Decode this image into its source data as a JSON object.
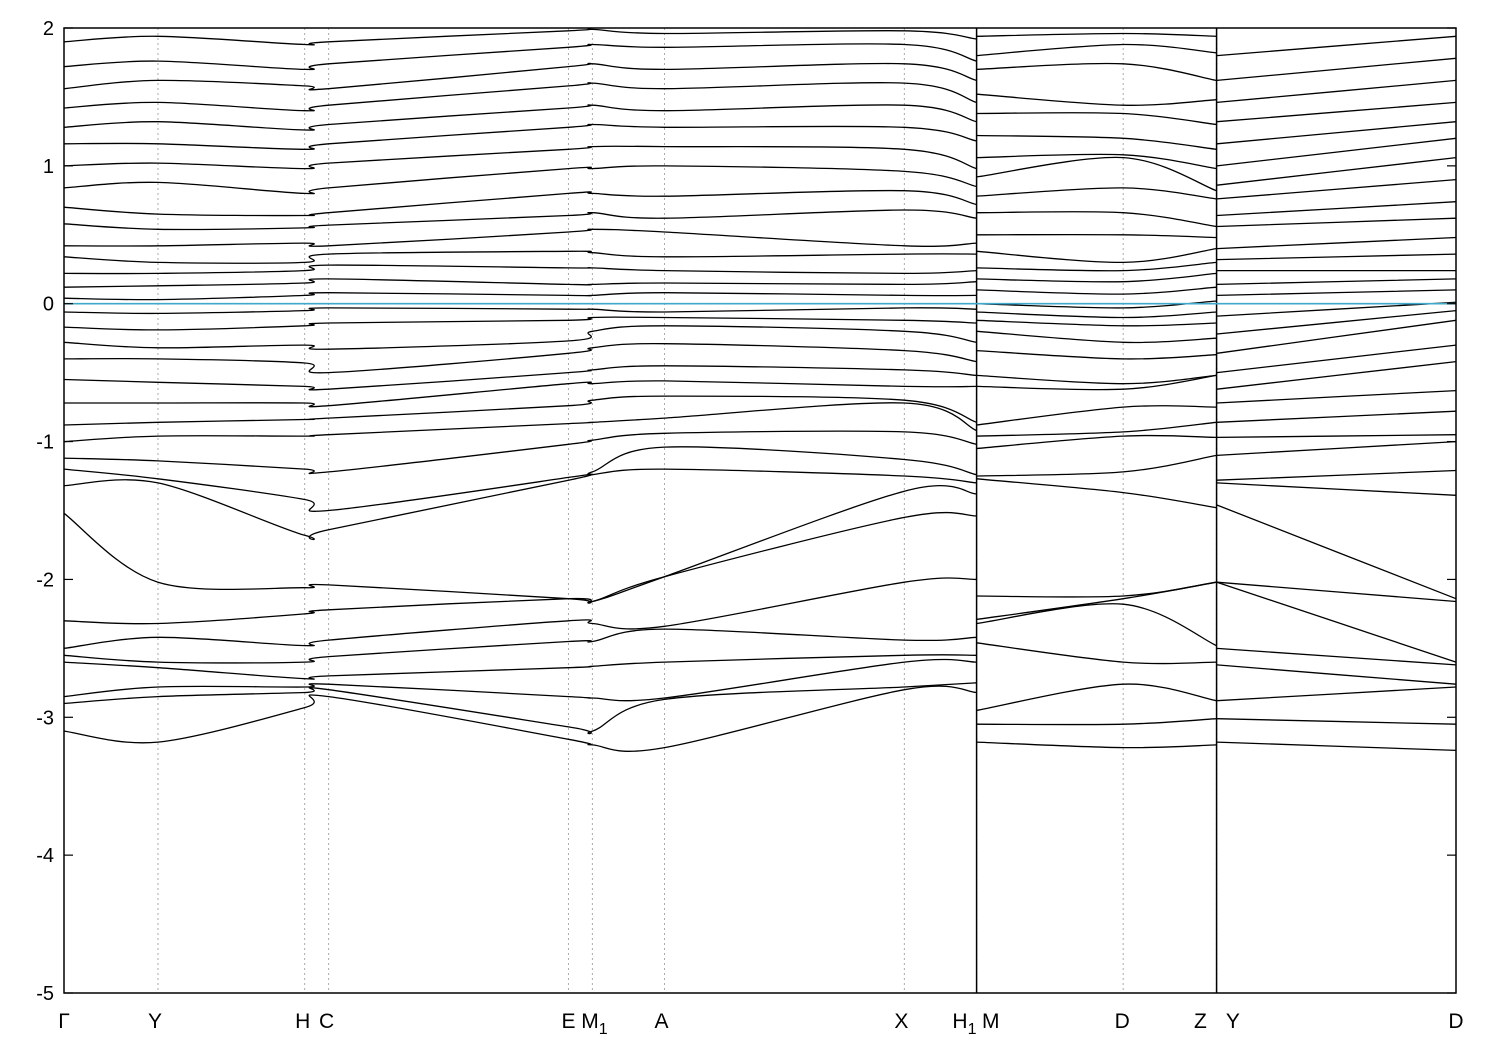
{
  "chart_data": {
    "type": "line",
    "title": "",
    "xlabel": "",
    "ylabel": "",
    "ylim": [
      -5,
      2
    ],
    "yticks": [
      {
        "value": 2,
        "label": "2"
      },
      {
        "value": 1,
        "label": "1"
      },
      {
        "value": 0,
        "label": "0"
      },
      {
        "value": -1,
        "label": "-1"
      },
      {
        "value": -2,
        "label": "-2"
      },
      {
        "value": -3,
        "label": "-3"
      },
      {
        "value": -4,
        "label": "-4"
      },
      {
        "value": -5,
        "label": "-5"
      }
    ],
    "xrange": [
      0,
      1
    ],
    "high_symmetry_points": [
      {
        "label": "Γ",
        "sub": "",
        "x": 0.0
      },
      {
        "label": "Y",
        "sub": "",
        "x": 0.0675
      },
      {
        "label": "H",
        "sub": "",
        "x": 0.1729
      },
      {
        "label": "C",
        "sub": "",
        "x": 0.1901
      },
      {
        "label": "E",
        "sub": "",
        "x": 0.3624
      },
      {
        "label": "M",
        "sub": "1",
        "x": 0.3796
      },
      {
        "label": "A",
        "sub": "",
        "x": 0.4314
      },
      {
        "label": "X",
        "sub": "",
        "x": 0.6037
      },
      {
        "label": "H",
        "sub": "1",
        "x": 0.6555
      },
      {
        "label": "M",
        "sub": "",
        "x": 0.6557
      },
      {
        "label": "D",
        "sub": "",
        "x": 0.7609
      },
      {
        "label": "Z",
        "sub": "",
        "x": 0.8279
      },
      {
        "label": "Y",
        "sub": "",
        "x": 0.8282
      },
      {
        "label": "D",
        "sub": "",
        "x": 1.0
      }
    ],
    "panel_breaks": [
      0.6556,
      0.828
    ],
    "fermi_level": 0,
    "fermi_color": "#3fa9c9",
    "band_color": "#000000",
    "grid": "vertical dotted lines at high-symmetry points",
    "band_energies_at_points": [
      [
        -3.1,
        -3.18,
        -2.93,
        -2.85,
        -3.16,
        -3.2,
        -3.22,
        -2.8,
        -2.82,
        -3.18,
        -3.22,
        -3.2,
        -3.18,
        -3.24
      ],
      [
        -2.9,
        -2.85,
        -2.82,
        -2.8,
        -3.07,
        -3.1,
        -2.87,
        -2.78,
        -2.75,
        -3.05,
        -3.05,
        -3.01,
        -3.01,
        -3.05
      ],
      [
        -2.85,
        -2.78,
        -2.78,
        -2.76,
        -2.85,
        -2.86,
        -2.86,
        -2.6,
        -2.6,
        -2.95,
        -2.76,
        -2.88,
        -2.88,
        -2.78
      ],
      [
        -2.6,
        -2.64,
        -2.72,
        -2.7,
        -2.64,
        -2.63,
        -2.6,
        -2.55,
        -2.55,
        -2.46,
        -2.6,
        -2.6,
        -2.62,
        -2.76
      ],
      [
        -2.55,
        -2.6,
        -2.6,
        -2.56,
        -2.45,
        -2.45,
        -2.36,
        -2.44,
        -2.42,
        -2.32,
        -2.18,
        -2.48,
        -2.5,
        -2.62
      ],
      [
        -2.5,
        -2.42,
        -2.48,
        -2.44,
        -2.3,
        -2.32,
        -2.34,
        -2.02,
        -2.0,
        -2.29,
        -2.14,
        -2.02,
        -2.02,
        -2.6
      ],
      [
        -2.3,
        -2.32,
        -2.25,
        -2.22,
        -2.14,
        -2.16,
        -1.98,
        -1.55,
        -1.54,
        -2.12,
        -2.12,
        -2.02,
        -2.02,
        -2.16
      ],
      [
        -1.52,
        -2.02,
        -2.06,
        -2.04,
        -2.14,
        -2.16,
        -1.98,
        -1.36,
        -1.38,
        -1.27,
        -1.37,
        -1.48,
        -1.46,
        -2.14
      ],
      [
        -1.32,
        -1.3,
        -1.68,
        -1.64,
        -1.28,
        -1.24,
        -1.2,
        -1.25,
        -1.3,
        -1.25,
        -1.22,
        -1.1,
        -1.3,
        -1.39
      ],
      [
        -1.2,
        -1.27,
        -1.42,
        -1.5,
        -1.26,
        -1.22,
        -1.04,
        -1.13,
        -1.24,
        -1.05,
        -0.96,
        -0.97,
        -1.28,
        -1.21
      ],
      [
        -1.12,
        -1.14,
        -1.2,
        -1.22,
        -1.02,
        -0.99,
        -0.94,
        -0.93,
        -1.02,
        -0.96,
        -0.93,
        -0.86,
        -1.1,
        -1.0
      ],
      [
        -1.0,
        -0.96,
        -0.96,
        -0.95,
        -0.87,
        -0.86,
        -0.83,
        -0.72,
        -0.92,
        -0.88,
        -0.75,
        -0.75,
        -0.97,
        -0.95
      ],
      [
        -0.88,
        -0.86,
        -0.84,
        -0.83,
        -0.74,
        -0.7,
        -0.67,
        -0.7,
        -0.86,
        -0.6,
        -0.62,
        -0.52,
        -0.86,
        -0.78
      ],
      [
        -0.72,
        -0.72,
        -0.72,
        -0.74,
        -0.58,
        -0.58,
        -0.56,
        -0.6,
        -0.6,
        -0.52,
        -0.58,
        -0.52,
        -0.72,
        -0.63
      ],
      [
        -0.55,
        -0.57,
        -0.6,
        -0.62,
        -0.5,
        -0.48,
        -0.45,
        -0.48,
        -0.52,
        -0.34,
        -0.4,
        -0.37,
        -0.62,
        -0.42
      ],
      [
        -0.4,
        -0.4,
        -0.43,
        -0.5,
        -0.36,
        -0.32,
        -0.29,
        -0.34,
        -0.42,
        -0.2,
        -0.28,
        -0.25,
        -0.5,
        -0.3
      ],
      [
        -0.28,
        -0.32,
        -0.3,
        -0.33,
        -0.27,
        -0.2,
        -0.16,
        -0.2,
        -0.28,
        -0.12,
        -0.16,
        -0.14,
        -0.36,
        -0.12
      ],
      [
        -0.17,
        -0.19,
        -0.16,
        -0.14,
        -0.12,
        -0.1,
        -0.1,
        -0.12,
        -0.14,
        -0.06,
        -0.1,
        -0.06,
        -0.22,
        -0.05
      ],
      [
        -0.06,
        -0.07,
        -0.05,
        -0.03,
        -0.04,
        -0.04,
        -0.06,
        -0.03,
        -0.04,
        0.0,
        -0.03,
        0.02,
        -0.09,
        0.01
      ],
      [
        0.04,
        0.03,
        0.06,
        0.08,
        0.06,
        0.06,
        0.08,
        0.06,
        0.06,
        0.1,
        0.07,
        0.12,
        0.06,
        0.1
      ],
      [
        0.12,
        0.13,
        0.15,
        0.18,
        0.14,
        0.14,
        0.15,
        0.14,
        0.16,
        0.18,
        0.16,
        0.22,
        0.14,
        0.18
      ],
      [
        0.22,
        0.22,
        0.24,
        0.28,
        0.26,
        0.26,
        0.24,
        0.22,
        0.24,
        0.26,
        0.24,
        0.3,
        0.24,
        0.24
      ],
      [
        0.34,
        0.3,
        0.3,
        0.36,
        0.38,
        0.37,
        0.34,
        0.36,
        0.36,
        0.38,
        0.3,
        0.4,
        0.32,
        0.36
      ],
      [
        0.42,
        0.42,
        0.44,
        0.42,
        0.52,
        0.54,
        0.52,
        0.42,
        0.44,
        0.5,
        0.5,
        0.48,
        0.4,
        0.48
      ],
      [
        0.58,
        0.54,
        0.55,
        0.57,
        0.64,
        0.66,
        0.62,
        0.68,
        0.62,
        0.66,
        0.66,
        0.56,
        0.56,
        0.62
      ],
      [
        0.7,
        0.65,
        0.64,
        0.66,
        0.8,
        0.8,
        0.78,
        0.82,
        0.72,
        0.78,
        0.84,
        0.76,
        0.64,
        0.74
      ],
      [
        0.84,
        0.88,
        0.8,
        0.84,
        0.98,
        0.98,
        1.0,
        0.96,
        0.85,
        0.92,
        1.06,
        0.82,
        0.76,
        0.9
      ],
      [
        1.0,
        1.02,
        0.98,
        1.02,
        1.12,
        1.14,
        1.14,
        1.12,
        0.98,
        1.06,
        1.08,
        0.98,
        0.86,
        1.06
      ],
      [
        1.16,
        1.16,
        1.12,
        1.16,
        1.28,
        1.3,
        1.28,
        1.28,
        1.18,
        1.22,
        1.2,
        1.12,
        1.0,
        1.2
      ],
      [
        1.28,
        1.32,
        1.26,
        1.3,
        1.42,
        1.44,
        1.4,
        1.44,
        1.32,
        1.38,
        1.38,
        1.3,
        1.16,
        1.32
      ],
      [
        1.42,
        1.46,
        1.4,
        1.44,
        1.58,
        1.6,
        1.56,
        1.6,
        1.46,
        1.52,
        1.44,
        1.48,
        1.32,
        1.46
      ],
      [
        1.56,
        1.62,
        1.58,
        1.56,
        1.72,
        1.74,
        1.7,
        1.74,
        1.62,
        1.7,
        1.74,
        1.62,
        1.46,
        1.62
      ],
      [
        1.72,
        1.76,
        1.7,
        1.74,
        1.86,
        1.88,
        1.86,
        1.88,
        1.76,
        1.8,
        1.88,
        1.82,
        1.62,
        1.78
      ],
      [
        1.9,
        1.94,
        1.88,
        1.9,
        1.98,
        1.99,
        1.96,
        1.98,
        1.92,
        1.94,
        1.96,
        1.94,
        1.8,
        1.94
      ]
    ]
  }
}
